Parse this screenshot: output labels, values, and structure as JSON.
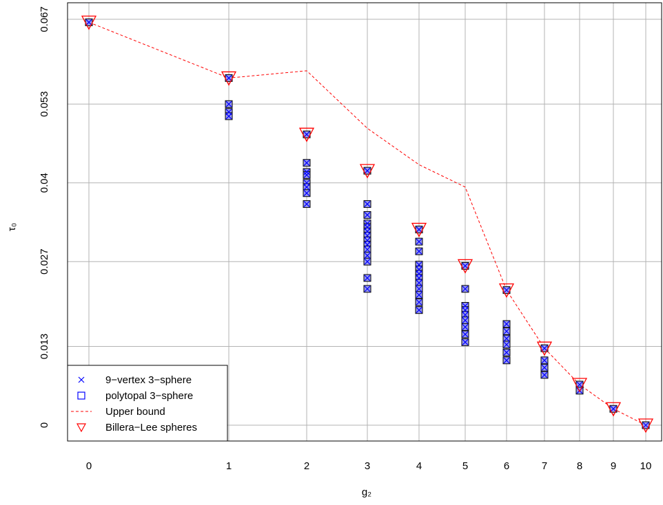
{
  "chart_data": {
    "type": "scatter",
    "xlabel": "g₂",
    "ylabel": "τ₀",
    "x_ticks": [
      0,
      1,
      2,
      3,
      4,
      5,
      6,
      7,
      8,
      9,
      10
    ],
    "y_ticks": [
      0,
      0.013,
      0.027,
      0.04,
      0.053,
      0.067
    ],
    "y_tick_labels": [
      "0",
      "0.013",
      "0.027",
      "0.04",
      "0.053",
      "0.067"
    ],
    "xlim": [
      0,
      10
    ],
    "ylim": [
      0,
      0.067
    ],
    "grid": true,
    "legend_position": "bottom-left",
    "colors": {
      "nine_vertex": "#0000ff",
      "polytopal_fill": "#9999ee",
      "upper_bound": "#ff0000",
      "billera_lee": "#ff0000",
      "grid": "#b3b3b3"
    },
    "series": [
      {
        "name": "9−vertex 3−sphere",
        "marker": "x",
        "points": [
          [
            0,
            0.0665
          ],
          [
            1,
            0.0573
          ],
          [
            1,
            0.053
          ],
          [
            1,
            0.0517
          ],
          [
            1,
            0.051
          ],
          [
            2,
            0.048
          ],
          [
            2,
            0.0433
          ],
          [
            2,
            0.0418
          ],
          [
            2,
            0.0413
          ],
          [
            2,
            0.04
          ],
          [
            2,
            0.0393
          ],
          [
            2,
            0.0383
          ],
          [
            2,
            0.0365
          ],
          [
            3,
            0.042
          ],
          [
            3,
            0.0365
          ],
          [
            3,
            0.0347
          ],
          [
            3,
            0.0333
          ],
          [
            3,
            0.0327
          ],
          [
            3,
            0.032
          ],
          [
            3,
            0.0313
          ],
          [
            3,
            0.0305
          ],
          [
            3,
            0.0298
          ],
          [
            3,
            0.029
          ],
          [
            3,
            0.028
          ],
          [
            3,
            0.027
          ],
          [
            3,
            0.0243
          ],
          [
            3,
            0.0225
          ],
          [
            4,
            0.0323
          ],
          [
            4,
            0.0303
          ],
          [
            4,
            0.0287
          ],
          [
            4,
            0.0265
          ],
          [
            4,
            0.0257
          ],
          [
            4,
            0.025
          ],
          [
            4,
            0.0243
          ],
          [
            4,
            0.0235
          ],
          [
            4,
            0.0225
          ],
          [
            4,
            0.0215
          ],
          [
            4,
            0.0203
          ],
          [
            4,
            0.019
          ],
          [
            5,
            0.0263
          ],
          [
            5,
            0.0225
          ],
          [
            5,
            0.0197
          ],
          [
            5,
            0.019
          ],
          [
            5,
            0.0182
          ],
          [
            5,
            0.0173
          ],
          [
            5,
            0.0162
          ],
          [
            5,
            0.015
          ],
          [
            5,
            0.0137
          ],
          [
            6,
            0.0223
          ],
          [
            6,
            0.0167
          ],
          [
            6,
            0.0155
          ],
          [
            6,
            0.0143
          ],
          [
            6,
            0.0133
          ],
          [
            6,
            0.012
          ],
          [
            6,
            0.0107
          ],
          [
            7,
            0.0127
          ],
          [
            7,
            0.0107
          ],
          [
            7,
            0.0095
          ],
          [
            7,
            0.0083
          ],
          [
            8,
            0.0067
          ],
          [
            8,
            0.0057
          ],
          [
            9,
            0.0027
          ],
          [
            10,
            0.0
          ]
        ]
      },
      {
        "name": "polytopal 3−sphere",
        "marker": "square",
        "points": [
          [
            0,
            0.0665
          ],
          [
            1,
            0.0573
          ],
          [
            1,
            0.053
          ],
          [
            1,
            0.0517
          ],
          [
            1,
            0.051
          ],
          [
            2,
            0.048
          ],
          [
            2,
            0.0433
          ],
          [
            2,
            0.0418
          ],
          [
            2,
            0.0413
          ],
          [
            2,
            0.04
          ],
          [
            2,
            0.0393
          ],
          [
            2,
            0.0383
          ],
          [
            2,
            0.0365
          ],
          [
            3,
            0.042
          ],
          [
            3,
            0.0365
          ],
          [
            3,
            0.0347
          ],
          [
            3,
            0.0333
          ],
          [
            3,
            0.0327
          ],
          [
            3,
            0.032
          ],
          [
            3,
            0.0313
          ],
          [
            3,
            0.0305
          ],
          [
            3,
            0.0298
          ],
          [
            3,
            0.029
          ],
          [
            3,
            0.028
          ],
          [
            3,
            0.027
          ],
          [
            3,
            0.0243
          ],
          [
            3,
            0.0225
          ],
          [
            4,
            0.0323
          ],
          [
            4,
            0.0303
          ],
          [
            4,
            0.0287
          ],
          [
            4,
            0.0265
          ],
          [
            4,
            0.0257
          ],
          [
            4,
            0.025
          ],
          [
            4,
            0.0243
          ],
          [
            4,
            0.0235
          ],
          [
            4,
            0.0225
          ],
          [
            4,
            0.0215
          ],
          [
            4,
            0.0203
          ],
          [
            4,
            0.019
          ],
          [
            5,
            0.0263
          ],
          [
            5,
            0.0225
          ],
          [
            5,
            0.0197
          ],
          [
            5,
            0.019
          ],
          [
            5,
            0.0182
          ],
          [
            5,
            0.0173
          ],
          [
            5,
            0.0162
          ],
          [
            5,
            0.015
          ],
          [
            5,
            0.0137
          ],
          [
            6,
            0.0223
          ],
          [
            6,
            0.0167
          ],
          [
            6,
            0.0155
          ],
          [
            6,
            0.0143
          ],
          [
            6,
            0.0133
          ],
          [
            6,
            0.012
          ],
          [
            6,
            0.0107
          ],
          [
            7,
            0.0127
          ],
          [
            7,
            0.0107
          ],
          [
            7,
            0.0095
          ],
          [
            7,
            0.0083
          ],
          [
            8,
            0.0067
          ],
          [
            8,
            0.0057
          ],
          [
            9,
            0.0027
          ],
          [
            10,
            0.0
          ]
        ]
      },
      {
        "name": "Upper bound",
        "marker": "dashed-line",
        "points": [
          [
            0,
            0.0665
          ],
          [
            1,
            0.0573
          ],
          [
            2,
            0.0585
          ],
          [
            3,
            0.049
          ],
          [
            4,
            0.043
          ],
          [
            5,
            0.0393
          ],
          [
            6,
            0.0223
          ],
          [
            7,
            0.0127
          ],
          [
            8,
            0.0067
          ],
          [
            9,
            0.0027
          ],
          [
            10,
            0.0
          ]
        ]
      },
      {
        "name": "Billera−Lee spheres",
        "marker": "triangle-down",
        "points": [
          [
            0,
            0.0665
          ],
          [
            1,
            0.0573
          ],
          [
            2,
            0.048
          ],
          [
            3,
            0.042
          ],
          [
            4,
            0.0323
          ],
          [
            5,
            0.0263
          ],
          [
            6,
            0.0223
          ],
          [
            7,
            0.0127
          ],
          [
            8,
            0.0067
          ],
          [
            9,
            0.0027
          ],
          [
            10,
            0.0
          ]
        ]
      }
    ]
  }
}
